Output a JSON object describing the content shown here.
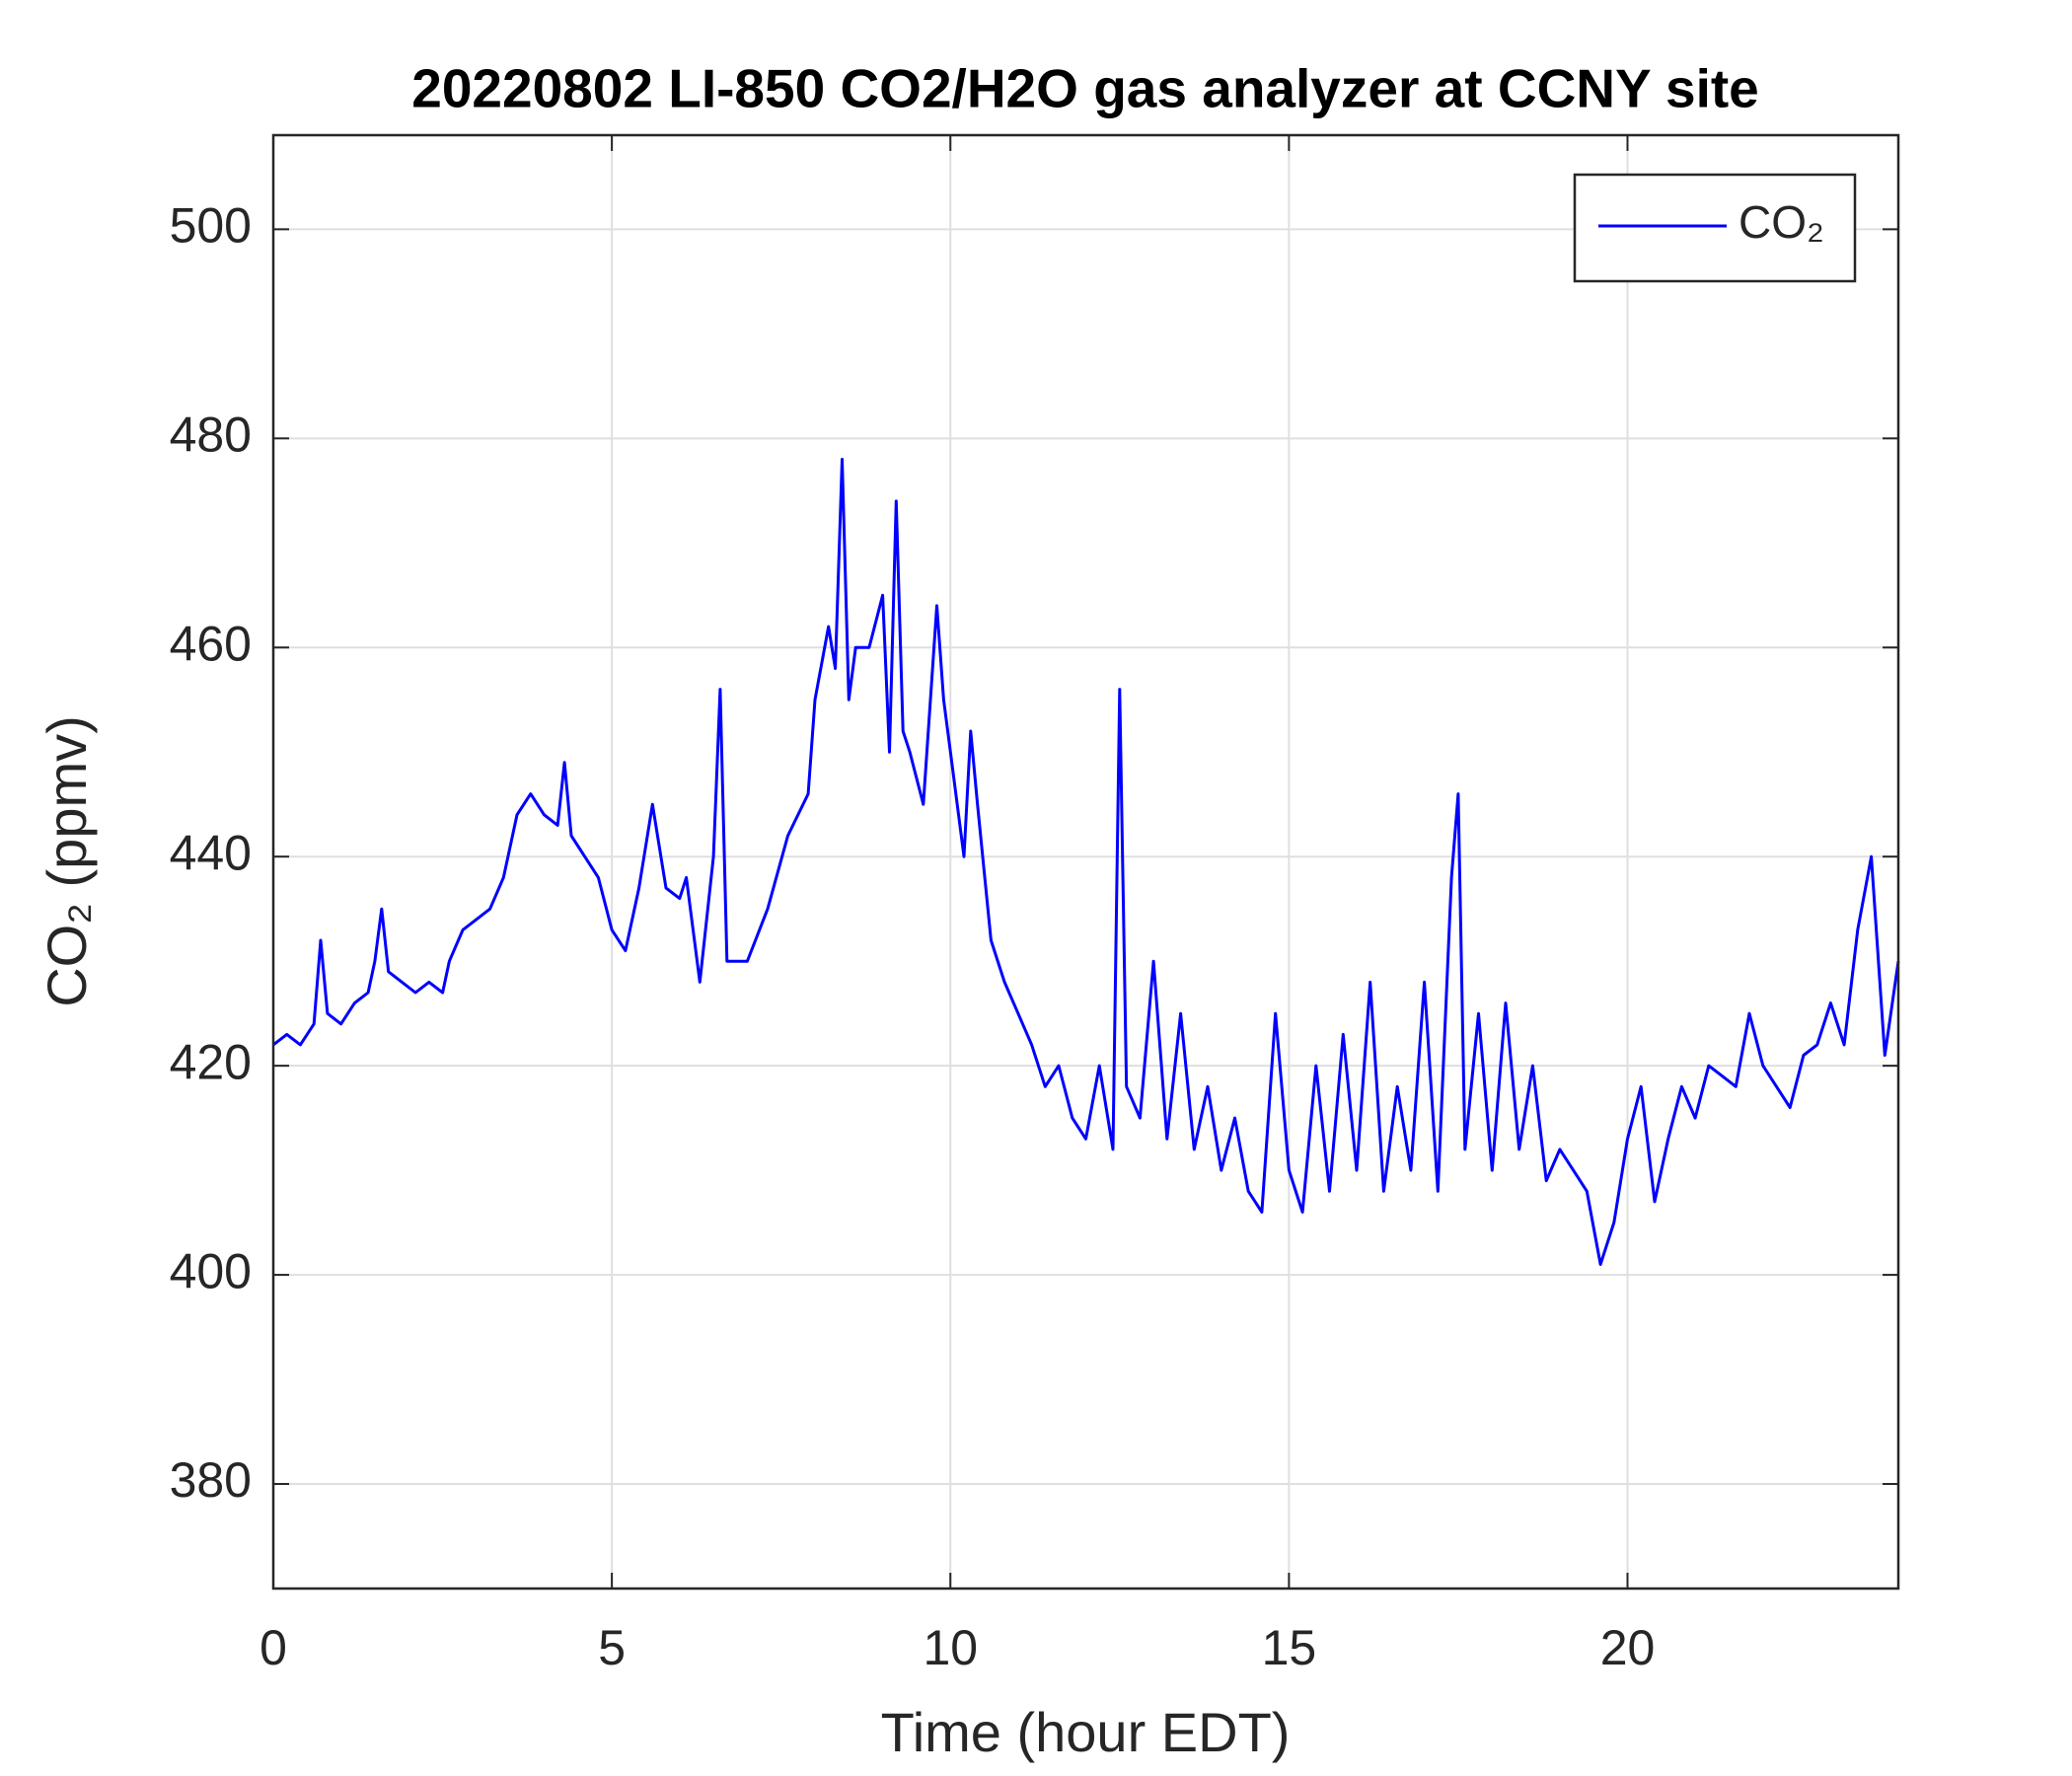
{
  "chart_data": {
    "type": "line",
    "title": "20220802 LI-850 CO2/H2O gas analyzer at CCNY site",
    "xlabel": "Time (hour EDT)",
    "ylabel": "CO₂ (ppmv)",
    "xlim": [
      0,
      24
    ],
    "ylim": [
      370,
      509
    ],
    "xticks": [
      0,
      5,
      10,
      15,
      20
    ],
    "yticks": [
      380,
      400,
      420,
      440,
      460,
      480,
      500
    ],
    "grid": true,
    "legend": "northeast",
    "series": [
      {
        "name": "CO₂",
        "color": "#0000ff",
        "x": [
          0,
          0.2,
          0.4,
          0.6,
          0.7,
          0.8,
          1.0,
          1.2,
          1.4,
          1.5,
          1.6,
          1.7,
          1.9,
          2.1,
          2.3,
          2.5,
          2.6,
          2.8,
          3.0,
          3.2,
          3.4,
          3.6,
          3.8,
          4.0,
          4.2,
          4.3,
          4.4,
          4.6,
          4.8,
          5.0,
          5.2,
          5.4,
          5.6,
          5.8,
          6.0,
          6.1,
          6.3,
          6.5,
          6.6,
          6.7,
          7.0,
          7.3,
          7.6,
          7.9,
          8.0,
          8.2,
          8.3,
          8.4,
          8.5,
          8.6,
          8.8,
          9.0,
          9.1,
          9.2,
          9.3,
          9.4,
          9.6,
          9.8,
          9.9,
          10.0,
          10.2,
          10.3,
          10.4,
          10.6,
          10.8,
          11.0,
          11.2,
          11.4,
          11.6,
          11.8,
          12.0,
          12.2,
          12.4,
          12.5,
          12.6,
          12.8,
          13.0,
          13.2,
          13.4,
          13.6,
          13.8,
          14.0,
          14.2,
          14.4,
          14.6,
          14.8,
          15.0,
          15.2,
          15.4,
          15.6,
          15.8,
          16.0,
          16.2,
          16.4,
          16.6,
          16.8,
          17.0,
          17.2,
          17.4,
          17.5,
          17.6,
          17.8,
          18.0,
          18.2,
          18.4,
          18.6,
          18.8,
          19.0,
          19.2,
          19.4,
          19.6,
          19.8,
          20.0,
          20.2,
          20.4,
          20.6,
          20.8,
          21.0,
          21.2,
          21.4,
          21.6,
          21.8,
          22.0,
          22.2,
          22.4,
          22.6,
          22.8,
          23.0,
          23.2,
          23.4,
          23.6,
          23.8,
          24.0
        ],
        "values": [
          422,
          423,
          422,
          424,
          432,
          425,
          424,
          426,
          427,
          430,
          435,
          429,
          428,
          427,
          428,
          427,
          430,
          433,
          434,
          435,
          438,
          444,
          446,
          444,
          443,
          449,
          442,
          440,
          438,
          433,
          431,
          437,
          445,
          437,
          436,
          438,
          428,
          440,
          456,
          430,
          430,
          435,
          442,
          446,
          455,
          462,
          458,
          478,
          455,
          460,
          460,
          465,
          450,
          474,
          452,
          450,
          445,
          464,
          455,
          450,
          440,
          452,
          445,
          432,
          428,
          425,
          422,
          418,
          420,
          415,
          413,
          420,
          412,
          456,
          418,
          415,
          430,
          413,
          425,
          412,
          418,
          410,
          415,
          408,
          406,
          425,
          410,
          406,
          420,
          408,
          423,
          410,
          428,
          408,
          418,
          410,
          428,
          408,
          438,
          446,
          412,
          425,
          410,
          426,
          412,
          420,
          409,
          412,
          410,
          408,
          401,
          405,
          413,
          418,
          407,
          413,
          418,
          415,
          420,
          419,
          418,
          425,
          420,
          418,
          416,
          421,
          422,
          426,
          422,
          433,
          440,
          421,
          430
        ]
      }
    ]
  }
}
